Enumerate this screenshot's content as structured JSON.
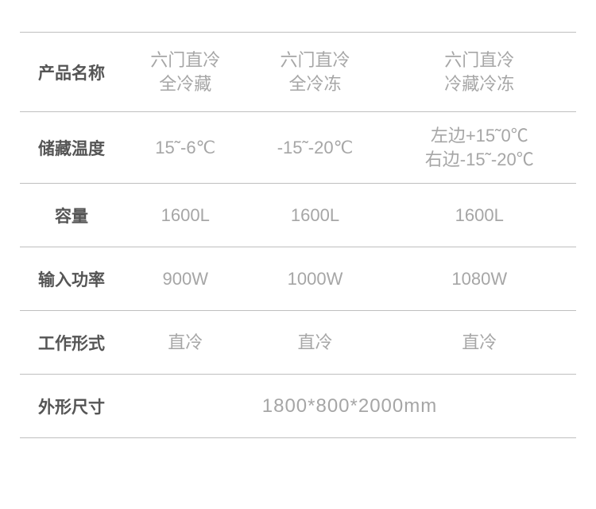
{
  "table": {
    "header_color": "#555555",
    "data_color": "#a6a6a6",
    "border_color": "#bfbfbf",
    "background_color": "#ffffff",
    "label_fontsize": 21,
    "data_fontsize": 22,
    "merged_fontsize": 24,
    "columns": [
      "label",
      "col1",
      "col2",
      "col3"
    ],
    "rows": [
      {
        "label": "产品名称",
        "c1": "六门直冷\n全冷藏",
        "c2": "六门直冷\n全冷冻",
        "c3": "六门直冷\n冷藏冷冻"
      },
      {
        "label": "储藏温度",
        "c1": "15˜-6℃",
        "c2": "-15˜-20℃",
        "c3": "左边+15˜0℃\n右边-15˜-20℃"
      },
      {
        "label": "容量",
        "c1": "1600L",
        "c2": "1600L",
        "c3": "1600L"
      },
      {
        "label": "输入功率",
        "c1": "900W",
        "c2": "1000W",
        "c3": "1080W"
      },
      {
        "label": "工作形式",
        "c1": "直冷",
        "c2": "直冷",
        "c3": "直冷"
      },
      {
        "label": "外形尺寸",
        "merged": "1800*800*2000mm"
      }
    ]
  }
}
